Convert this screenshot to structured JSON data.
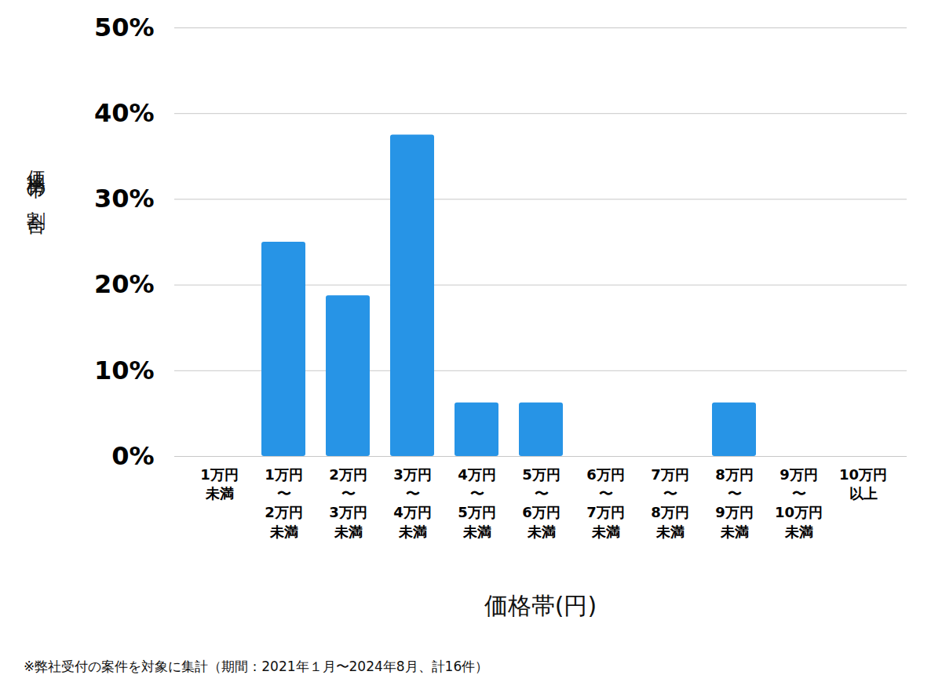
{
  "chart_data": {
    "type": "bar",
    "x_label": "価格帯(円)",
    "y_label": "価格帯の割合",
    "caption": "※弊社受付の案件を対象に集計（期間：2021年１月〜2024年8月、計16件）",
    "categories": [
      "1万円\n未満",
      "1万円\n〜\n2万円\n未満",
      "2万円\n〜\n3万円\n未満",
      "3万円\n〜\n4万円\n未満",
      "4万円\n〜\n5万円\n未満",
      "5万円\n〜\n6万円\n未満",
      "6万円\n〜\n7万円\n未満",
      "7万円\n〜\n8万円\n未満",
      "8万円\n〜\n9万円\n未満",
      "9万円\n〜\n10万円\n未満",
      "10万円\n以上"
    ],
    "values": [
      0,
      25,
      18.75,
      37.5,
      6.25,
      6.25,
      0,
      0,
      6.25,
      0,
      0
    ],
    "color": "#2794e6",
    "ylim": [
      0,
      50
    ],
    "yticks": [
      {
        "value": 0,
        "label": "0%"
      },
      {
        "value": 10,
        "label": "10%"
      },
      {
        "value": 20,
        "label": "20%"
      },
      {
        "value": 30,
        "label": "30%"
      },
      {
        "value": 40,
        "label": "40%"
      },
      {
        "value": 50,
        "label": "50%"
      }
    ],
    "grid": true
  }
}
